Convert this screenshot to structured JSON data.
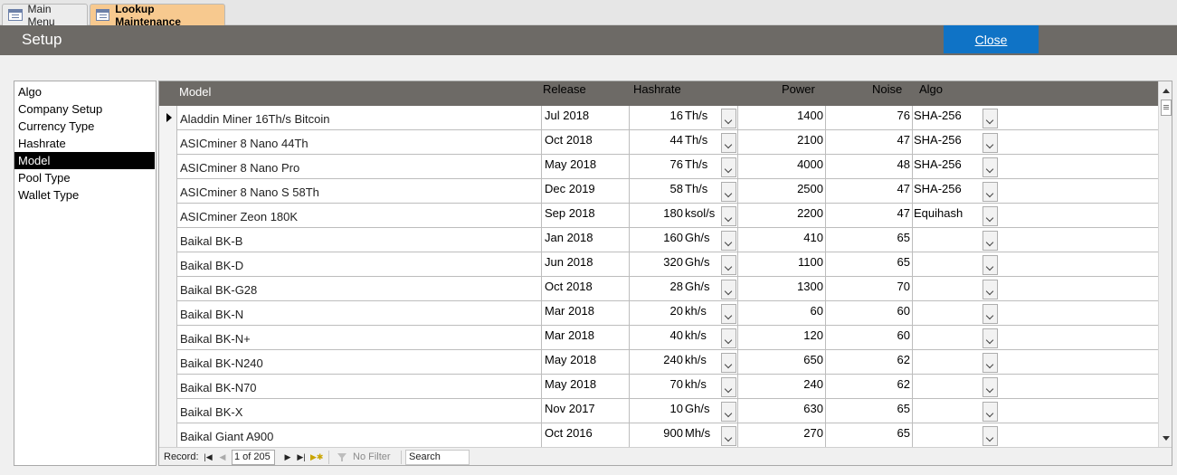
{
  "tabs": [
    {
      "label": "Main Menu",
      "icon": "form-icon"
    },
    {
      "label": "Lookup Maintenance",
      "icon": "form-icon"
    }
  ],
  "header": {
    "title": "Setup",
    "close_label": "Close"
  },
  "colors": {
    "header_bg": "#6d6a66",
    "close_bg": "#0f73c6",
    "active_tab": "#f7c98f",
    "selected_item_bg": "#000000"
  },
  "leftlist": {
    "items": [
      "Algo",
      "Company Setup",
      "Currency Type",
      "Hashrate",
      "Model",
      "Pool Type",
      "Wallet Type"
    ],
    "selected": "Model"
  },
  "grid": {
    "columns": {
      "model": "Model",
      "release": "Release",
      "hashrate": "Hashrate",
      "power": "Power",
      "noise": "Noise",
      "algo": "Algo"
    },
    "rows": [
      {
        "model": "Aladdin Miner 16Th/s Bitcoin",
        "release": "Jul 2018",
        "hashrate": "16",
        "unit": "Th/s",
        "power": "1400",
        "noise": "76",
        "algo": "SHA-256"
      },
      {
        "model": "ASICminer 8 Nano 44Th",
        "release": "Oct 2018",
        "hashrate": "44",
        "unit": "Th/s",
        "power": "2100",
        "noise": "47",
        "algo": "SHA-256"
      },
      {
        "model": "ASICminer 8 Nano Pro",
        "release": "May 2018",
        "hashrate": "76",
        "unit": "Th/s",
        "power": "4000",
        "noise": "48",
        "algo": "SHA-256"
      },
      {
        "model": "ASICminer 8 Nano S 58Th",
        "release": "Dec 2019",
        "hashrate": "58",
        "unit": "Th/s",
        "power": "2500",
        "noise": "47",
        "algo": "SHA-256"
      },
      {
        "model": "ASICminer Zeon 180K",
        "release": "Sep 2018",
        "hashrate": "180",
        "unit": "ksol/s",
        "power": "2200",
        "noise": "47",
        "algo": "Equihash"
      },
      {
        "model": "Baikal BK-B",
        "release": "Jan 2018",
        "hashrate": "160",
        "unit": "Gh/s",
        "power": "410",
        "noise": "65",
        "algo": ""
      },
      {
        "model": "Baikal BK-D",
        "release": "Jun 2018",
        "hashrate": "320",
        "unit": "Gh/s",
        "power": "1100",
        "noise": "65",
        "algo": ""
      },
      {
        "model": "Baikal BK-G28",
        "release": "Oct 2018",
        "hashrate": "28",
        "unit": "Gh/s",
        "power": "1300",
        "noise": "70",
        "algo": ""
      },
      {
        "model": "Baikal BK-N",
        "release": "Mar 2018",
        "hashrate": "20",
        "unit": "kh/s",
        "power": "60",
        "noise": "60",
        "algo": ""
      },
      {
        "model": "Baikal BK-N+",
        "release": "Mar 2018",
        "hashrate": "40",
        "unit": "kh/s",
        "power": "120",
        "noise": "60",
        "algo": ""
      },
      {
        "model": "Baikal BK-N240",
        "release": "May 2018",
        "hashrate": "240",
        "unit": "kh/s",
        "power": "650",
        "noise": "62",
        "algo": ""
      },
      {
        "model": "Baikal BK-N70",
        "release": "May 2018",
        "hashrate": "70",
        "unit": "kh/s",
        "power": "240",
        "noise": "62",
        "algo": ""
      },
      {
        "model": "Baikal BK-X",
        "release": "Nov 2017",
        "hashrate": "10",
        "unit": "Gh/s",
        "power": "630",
        "noise": "65",
        "algo": ""
      },
      {
        "model": "Baikal Giant A900",
        "release": "Oct 2016",
        "hashrate": "900",
        "unit": "Mh/s",
        "power": "270",
        "noise": "65",
        "algo": ""
      }
    ]
  },
  "navigator": {
    "record_label": "Record:",
    "record_value": "1 of 205",
    "no_filter": "No Filter",
    "search_placeholder": "Search"
  }
}
